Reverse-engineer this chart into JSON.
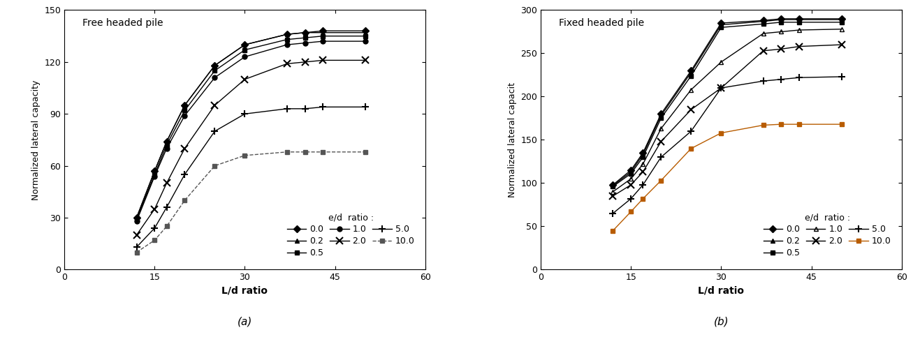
{
  "x_values": [
    12,
    15,
    17,
    20,
    25,
    30,
    37,
    40,
    43,
    50
  ],
  "free_headed": {
    "ed_0.0": [
      30,
      57,
      74,
      95,
      118,
      130,
      136,
      137,
      138,
      138
    ],
    "ed_0.2": [
      30,
      57,
      74,
      95,
      118,
      130,
      136,
      137,
      137,
      137
    ],
    "ed_0.5": [
      29,
      55,
      72,
      92,
      115,
      127,
      133,
      134,
      135,
      135
    ],
    "ed_1.0": [
      28,
      54,
      70,
      89,
      111,
      123,
      130,
      131,
      132,
      132
    ],
    "ed_2.0": [
      20,
      35,
      50,
      70,
      95,
      110,
      119,
      120,
      121,
      121
    ],
    "ed_5.0": [
      13,
      24,
      36,
      55,
      80,
      90,
      93,
      93,
      94,
      94
    ],
    "ed_10.0": [
      10,
      17,
      25,
      40,
      60,
      66,
      68,
      68,
      68,
      68
    ]
  },
  "fixed_headed": {
    "ed_0.0": [
      98,
      115,
      135,
      180,
      230,
      285,
      288,
      290,
      290,
      290
    ],
    "ed_0.2": [
      97,
      113,
      133,
      178,
      228,
      283,
      287,
      289,
      289,
      289
    ],
    "ed_0.5": [
      96,
      111,
      130,
      175,
      224,
      280,
      284,
      286,
      286,
      286
    ],
    "ed_1.0": [
      90,
      105,
      122,
      163,
      208,
      240,
      273,
      275,
      277,
      278
    ],
    "ed_2.0": [
      85,
      98,
      113,
      148,
      185,
      210,
      253,
      255,
      258,
      260
    ],
    "ed_5.0": [
      65,
      82,
      98,
      130,
      160,
      210,
      218,
      220,
      222,
      223
    ],
    "ed_10.0": [
      45,
      67,
      82,
      103,
      140,
      158,
      167,
      168,
      168,
      168
    ]
  },
  "free_labels": [
    "0.0",
    "0.2",
    "0.5",
    "1.0",
    "2.0",
    "5.0",
    "10.0"
  ],
  "fixed_labels": [
    "0.0",
    "0.2",
    "0.5",
    "1.0",
    "2.0",
    "5.0",
    "10.0"
  ],
  "free_colors": [
    "#000000",
    "#000000",
    "#000000",
    "#000000",
    "#000000",
    "#000000",
    "#555555"
  ],
  "fixed_colors": [
    "#000000",
    "#000000",
    "#000000",
    "#000000",
    "#000000",
    "#000000",
    "#b85c00"
  ],
  "free_markers": [
    "D",
    "^",
    "s",
    "o",
    "x",
    "+",
    "s"
  ],
  "fixed_markers": [
    "D",
    "^",
    "s",
    "^",
    "x",
    "+",
    "s"
  ],
  "free_fillstyles": [
    "full",
    "full",
    "full",
    "full",
    "none",
    "none",
    "full"
  ],
  "fixed_fillstyles": [
    "full",
    "full",
    "full",
    "none",
    "none",
    "none",
    "full"
  ],
  "free_linestyles": [
    "-",
    "-",
    "-",
    "-",
    "-",
    "-",
    "--"
  ],
  "fixed_linestyles": [
    "-",
    "-",
    "-",
    "-",
    "-",
    "-",
    "-"
  ],
  "free_title": "Free headed pile",
  "fixed_title": "Fixed headed pile",
  "free_ylabel": "Normalized lateral capacity",
  "fixed_ylabel": "Normalized lateral capacit",
  "xlabel": "L/d ratio",
  "free_ylim": [
    0,
    150
  ],
  "fixed_ylim": [
    0,
    300
  ],
  "xlim": [
    0,
    60
  ],
  "free_yticks": [
    0,
    30,
    60,
    90,
    120,
    150
  ],
  "fixed_yticks": [
    0,
    50,
    100,
    150,
    200,
    250,
    300
  ],
  "xticks": [
    0,
    15,
    30,
    45,
    60
  ],
  "sub_labels": [
    "(a)",
    "(b)"
  ],
  "legend_title": "e/d  ratio :",
  "background_color": "#ffffff"
}
